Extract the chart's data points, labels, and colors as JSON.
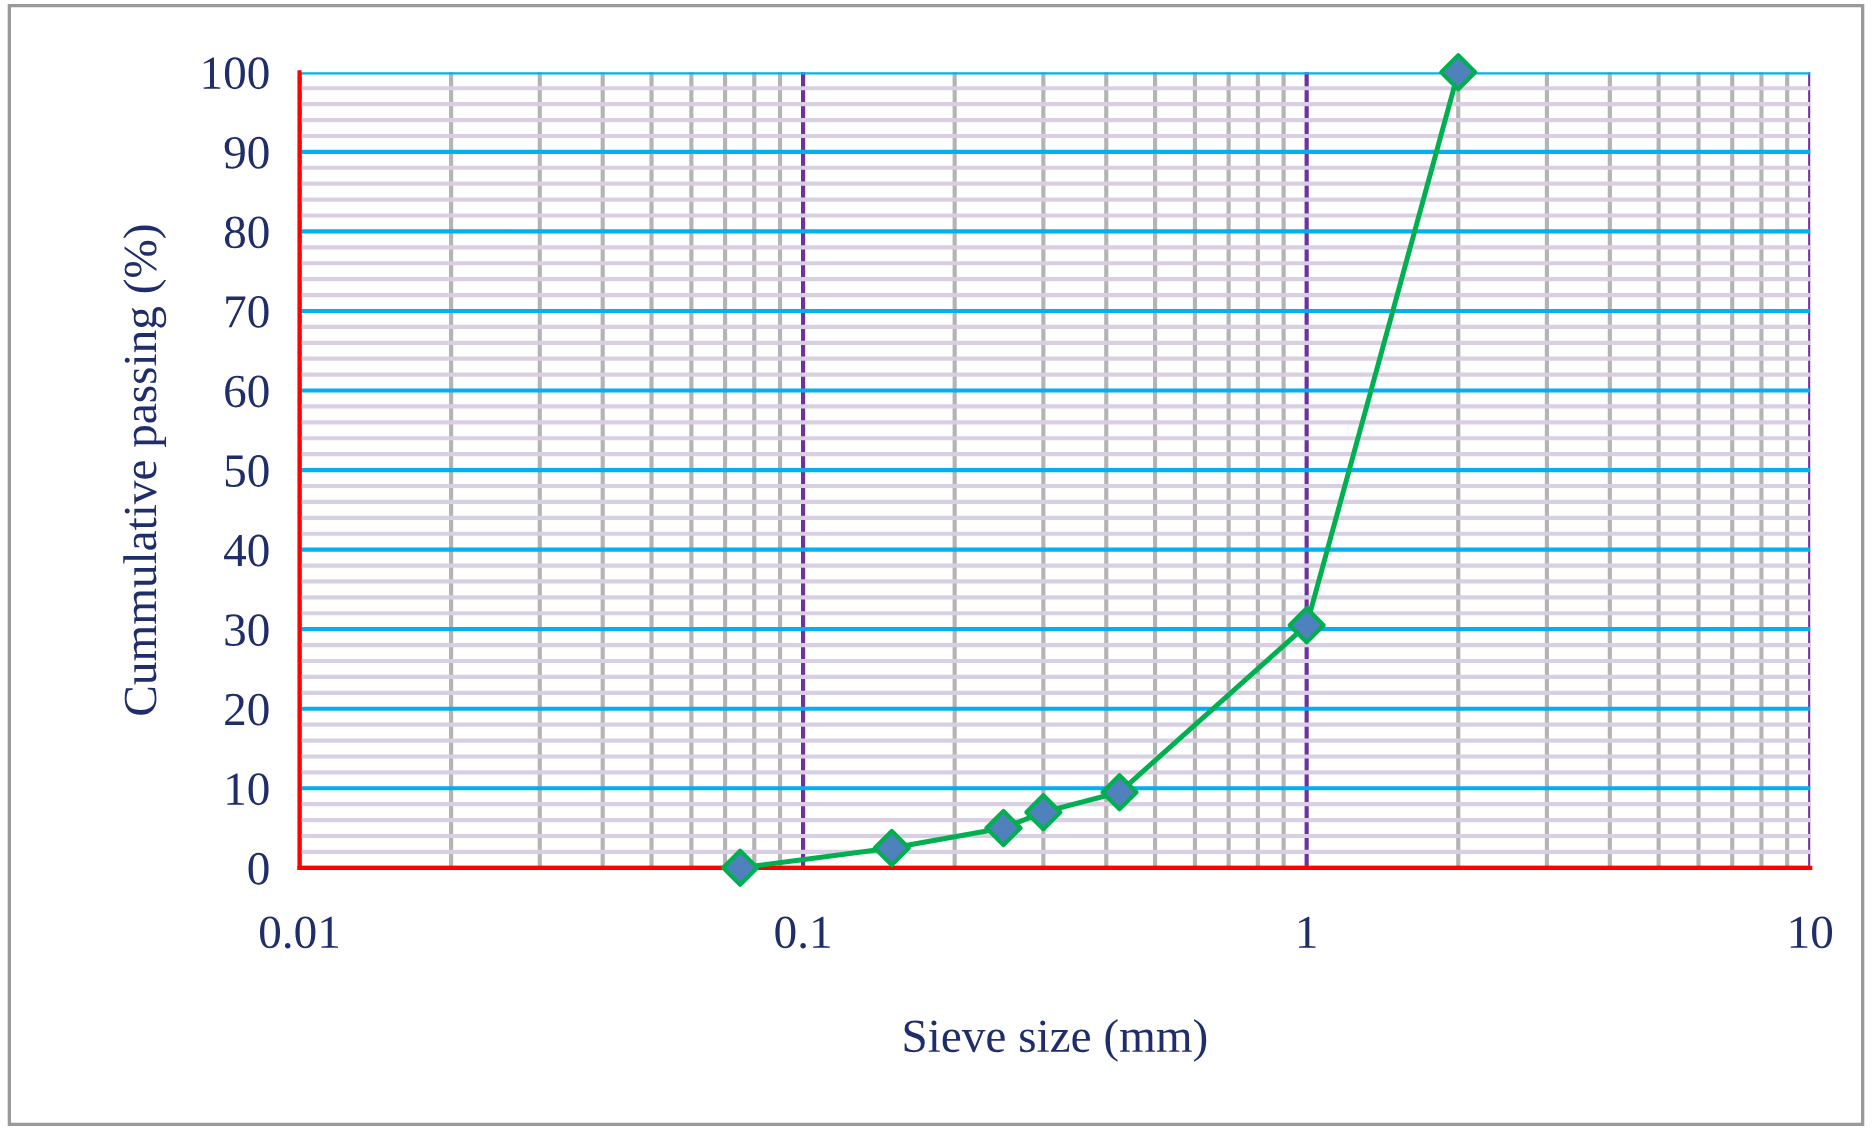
{
  "chart_data": {
    "type": "line",
    "xlabel": "Sieve size (mm)",
    "ylabel": "Cummulative passing (%)",
    "x": [
      0.075,
      0.15,
      0.25,
      0.3,
      0.425,
      1,
      2
    ],
    "series": [
      {
        "color": "#00b050",
        "values": [
          0,
          2.5,
          5,
          7,
          9.5,
          30.5,
          100
        ]
      }
    ],
    "log": "x",
    "xlim": [
      0.01,
      10
    ],
    "xticks": [
      0.01,
      0.1,
      1,
      10
    ],
    "ylim": [
      0,
      100
    ],
    "yticks": [
      0,
      10,
      20,
      30,
      40,
      50,
      60,
      70,
      80,
      90,
      100
    ],
    "grid": true,
    "marker": "diamond",
    "line_style": "solid"
  }
}
